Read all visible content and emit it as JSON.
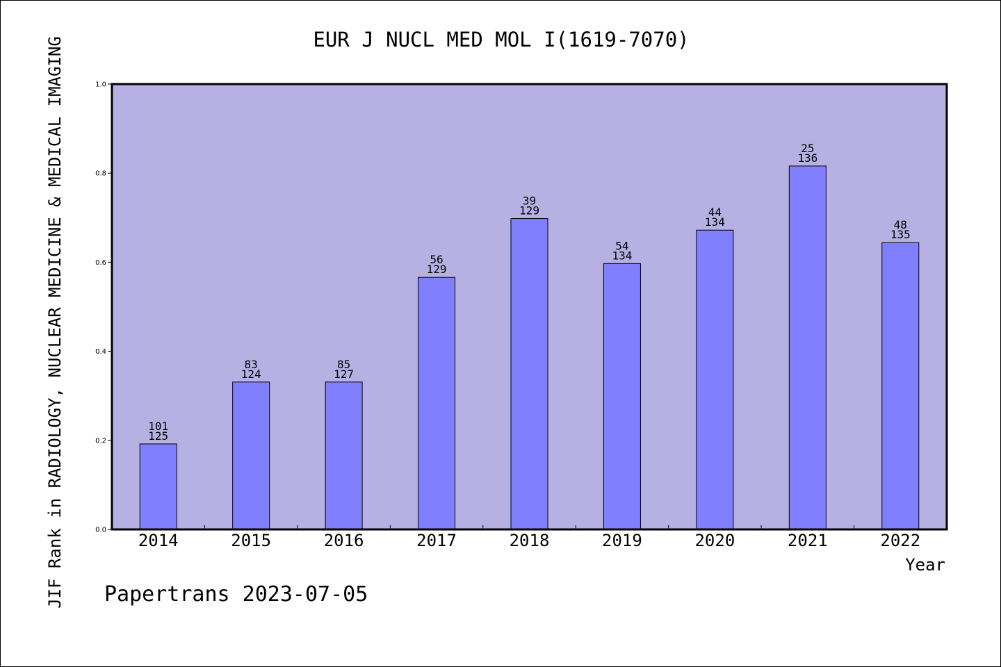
{
  "footer": "Papertrans 2023-07-05",
  "colors": {
    "plot_background": "#b6b0e3",
    "bar_fill": "#8080ff",
    "bar_stroke": "#000000",
    "axis": "#000000"
  },
  "chart_data": {
    "type": "bar",
    "title": "EUR J NUCL MED MOL I(1619-7070)",
    "xlabel": "Year",
    "ylabel": "JIF Rank in RADIOLOGY, NUCLEAR MEDICINE & MEDICAL IMAGING",
    "categories": [
      "2014",
      "2015",
      "2016",
      "2017",
      "2018",
      "2019",
      "2020",
      "2021",
      "2022"
    ],
    "values": [
      0.192,
      0.331,
      0.331,
      0.566,
      0.698,
      0.597,
      0.672,
      0.816,
      0.644
    ],
    "bar_labels_top": [
      "101",
      "83",
      "85",
      "56",
      "39",
      "54",
      "44",
      "25",
      "48"
    ],
    "bar_labels_bottom": [
      "125",
      "124",
      "127",
      "129",
      "129",
      "134",
      "134",
      "136",
      "135"
    ],
    "ylim": [
      0,
      1.0
    ],
    "yticks": [
      "0.0",
      "0.2",
      "0.4",
      "0.6",
      "0.8",
      "1.0"
    ],
    "ytick_values": [
      0,
      0.2,
      0.4,
      0.6,
      0.8,
      1.0
    ],
    "grid": false,
    "legend": "none"
  }
}
